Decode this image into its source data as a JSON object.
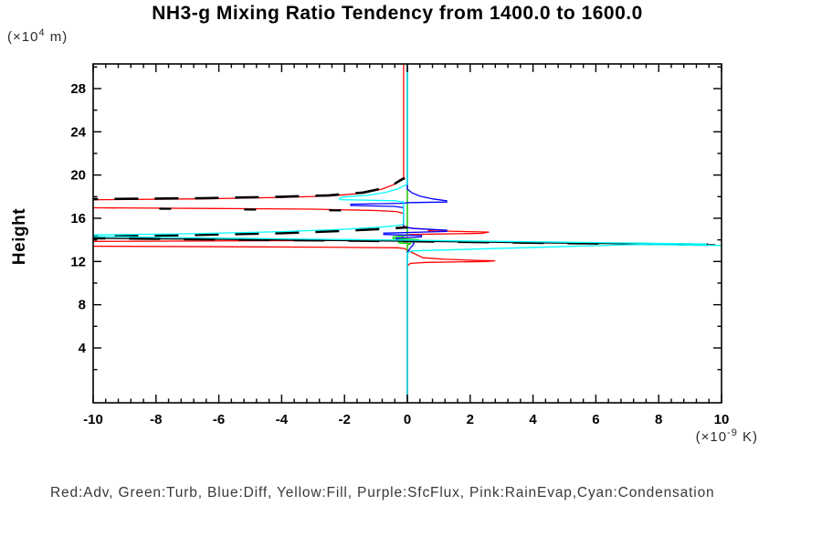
{
  "title": "NH3-g Mixing Ratio Tendency from 1400.0 to 1600.0",
  "legend_line": "Red:Adv, Green:Turb, Blue:Diff, Yellow:Fill, Purple:SfcFlux, Pink:RainEvap,Cyan:Condensation",
  "y_axis": {
    "label": "Height",
    "unit_prefix": "(×10",
    "unit_sup": "4",
    "unit_suffix": " m)",
    "range": [
      0,
      30
    ],
    "major_ticks": [
      4,
      8,
      12,
      16,
      20,
      24,
      28
    ],
    "minor_ticks": [
      2,
      6,
      10,
      14,
      18,
      22,
      26,
      30
    ]
  },
  "x_axis": {
    "unit_prefix": "(×10",
    "unit_sup": "-9",
    "unit_suffix": " K)",
    "range": [
      -10,
      10
    ],
    "major_ticks": [
      -10,
      -8,
      -6,
      -4,
      -2,
      0,
      2,
      4,
      6,
      8,
      10
    ],
    "minor_step": 0.4
  },
  "colors": {
    "adv": "#ff0000",
    "turb": "#00dd00",
    "diff": "#0000ff",
    "fill": "#ffff00",
    "sfcflux": "#aa00dd",
    "rainevap": "#ff8888",
    "condensation": "#00ffff",
    "net": "#000000",
    "frame": "#000000"
  },
  "chart_data": {
    "type": "line",
    "orientation": "vertical-profile",
    "title": "NH3-g Mixing Ratio Tendency from 1400.0 to 1600.0",
    "xlabel": "(x10^-9 K)",
    "ylabel": "Height (x10^4 m)",
    "xlim": [
      -10,
      10
    ],
    "ylim": [
      0,
      30
    ],
    "grid": false,
    "zero_line": {
      "x": 0,
      "color": "#00ffff"
    },
    "series": [
      {
        "name": "fill",
        "legend": "Yellow:Fill",
        "color": "#ffff00",
        "width": 1.2,
        "dash": null,
        "points": [
          [
            0,
            30.5
          ],
          [
            0,
            -1.5
          ]
        ]
      },
      {
        "name": "sfcflux",
        "legend": "Purple:SfcFlux",
        "color": "#aa00dd",
        "width": 1.2,
        "dash": null,
        "points": [
          [
            0,
            30.5
          ],
          [
            0,
            -1.5
          ]
        ]
      },
      {
        "name": "rainevap",
        "legend": "Pink:RainEvap",
        "color": "#ff8888",
        "width": 1.2,
        "dash": null,
        "points": [
          [
            0,
            30.5
          ],
          [
            0,
            -1.5
          ]
        ]
      },
      {
        "name": "adv",
        "legend": "Red:Adv",
        "color": "#ff0000",
        "width": 1.3,
        "dash": null,
        "points": [
          [
            -0.12,
            30.5
          ],
          [
            -0.12,
            19.75
          ],
          [
            -0.25,
            19.55
          ],
          [
            -0.4,
            19.15
          ],
          [
            -0.8,
            18.7
          ],
          [
            -1.4,
            18.32
          ],
          [
            -2.5,
            18.06
          ],
          [
            -4,
            17.93
          ],
          [
            -6.5,
            17.8
          ],
          [
            -10.6,
            17.7
          ],
          [
            -10.6,
            16.98
          ],
          [
            -6,
            16.9
          ],
          [
            -3,
            16.84
          ],
          [
            -1,
            16.72
          ],
          [
            -0.35,
            16.62
          ],
          [
            -0.12,
            16.45
          ],
          [
            -0.12,
            15.25
          ],
          [
            0.1,
            15.08
          ],
          [
            0.85,
            14.95
          ],
          [
            0.65,
            14.85
          ],
          [
            2.6,
            14.72
          ],
          [
            2.35,
            14.6
          ],
          [
            0.15,
            14.5
          ],
          [
            -0.15,
            14.42
          ],
          [
            -0.15,
            13.97
          ],
          [
            -10.6,
            13.85
          ],
          [
            -10.6,
            13.42
          ],
          [
            -2.8,
            13.33
          ],
          [
            -0.3,
            13.27
          ],
          [
            -0.1,
            13.2
          ],
          [
            0.1,
            12.9
          ],
          [
            0.5,
            12.35
          ],
          [
            1.2,
            12.2
          ],
          [
            2.2,
            12.1
          ],
          [
            2.8,
            12.07
          ],
          [
            2.5,
            12.0
          ],
          [
            0.6,
            11.92
          ],
          [
            0.1,
            11.82
          ],
          [
            0,
            11.6
          ],
          [
            0,
            -1.5
          ]
        ]
      },
      {
        "name": "turb",
        "legend": "Green:Turb",
        "color": "#00dd00",
        "width": 1.3,
        "dash": null,
        "points": [
          [
            0,
            30.5
          ],
          [
            0,
            14.42
          ],
          [
            -0.45,
            14.28
          ],
          [
            -0.45,
            14.12
          ],
          [
            0.35,
            14.02
          ],
          [
            0.33,
            13.9
          ],
          [
            -0.28,
            13.82
          ],
          [
            -0.26,
            13.72
          ],
          [
            0.1,
            13.64
          ],
          [
            0,
            13.5
          ],
          [
            0,
            -1.5
          ]
        ]
      },
      {
        "name": "diff",
        "legend": "Blue:Diff",
        "color": "#0000ff",
        "width": 1.3,
        "dash": null,
        "points": [
          [
            0,
            30.5
          ],
          [
            0,
            18.7
          ],
          [
            0.15,
            18.35
          ],
          [
            0.4,
            18.05
          ],
          [
            0.8,
            17.8
          ],
          [
            1.25,
            17.62
          ],
          [
            1.25,
            17.5
          ],
          [
            0.1,
            17.45
          ],
          [
            -0.2,
            17.38
          ],
          [
            -1.8,
            17.3
          ],
          [
            -1.8,
            17.18
          ],
          [
            -0.4,
            17.1
          ],
          [
            -0.12,
            16.98
          ],
          [
            -0.12,
            15.2
          ],
          [
            0.2,
            15.05
          ],
          [
            1.25,
            14.9
          ],
          [
            1.25,
            14.78
          ],
          [
            -0.75,
            14.62
          ],
          [
            -0.75,
            14.5
          ],
          [
            0.45,
            14.4
          ],
          [
            0.45,
            14.27
          ],
          [
            -0.35,
            14.17
          ],
          [
            -0.35,
            14.02
          ],
          [
            0.2,
            13.92
          ],
          [
            0.2,
            13.6
          ],
          [
            0.08,
            13.2
          ],
          [
            0,
            12.85
          ],
          [
            0,
            -1.5
          ]
        ]
      },
      {
        "name": "net-upper",
        "legend": "",
        "color": "#000000",
        "width": 2.6,
        "dash": "26 18",
        "points": [
          [
            -10.6,
            17.76
          ],
          [
            -6.5,
            17.86
          ],
          [
            -4,
            17.99
          ],
          [
            -2.5,
            18.12
          ],
          [
            -1.4,
            18.38
          ],
          [
            -0.8,
            18.76
          ],
          [
            -0.4,
            19.2
          ],
          [
            -0.2,
            19.55
          ],
          [
            -0.08,
            19.72
          ]
        ]
      },
      {
        "name": "net-adv2",
        "legend": "",
        "color": "#000000",
        "width": 2.2,
        "dash": "13 80",
        "points": [
          [
            -10.6,
            16.96
          ],
          [
            -0.4,
            16.68
          ]
        ]
      },
      {
        "name": "net-peak",
        "legend": "",
        "color": "#000000",
        "width": 2.6,
        "dash": "26 18",
        "points": [
          [
            -10.6,
            14.3
          ],
          [
            -7,
            14.44
          ],
          [
            -4,
            14.62
          ],
          [
            -2,
            14.84
          ],
          [
            -0.9,
            15.0
          ],
          [
            -0.3,
            15.1
          ],
          [
            0,
            15.16
          ]
        ]
      },
      {
        "name": "net-cross-solid",
        "legend": "",
        "color": "#000000",
        "width": 1.3,
        "dash": null,
        "points": [
          [
            -10.6,
            14.17
          ],
          [
            -4,
            13.99
          ],
          [
            0,
            13.88
          ],
          [
            5,
            13.7
          ],
          [
            9.8,
            13.55
          ]
        ]
      },
      {
        "name": "net-cross-dash",
        "legend": "",
        "color": "#000000",
        "width": 2.6,
        "dash": "34 26",
        "points": [
          [
            -10.6,
            14.17
          ],
          [
            -4,
            13.99
          ],
          [
            0,
            13.88
          ],
          [
            5,
            13.7
          ],
          [
            9.8,
            13.55
          ]
        ]
      },
      {
        "name": "condensation",
        "legend": "Cyan:Condensation",
        "color": "#00ffff",
        "width": 1.3,
        "dash": null,
        "points": [
          [
            0,
            30.5
          ],
          [
            0,
            19.15
          ],
          [
            -0.3,
            18.72
          ],
          [
            -0.7,
            18.38
          ],
          [
            -1.3,
            18.12
          ],
          [
            -2.05,
            17.97
          ],
          [
            -2.15,
            17.85
          ],
          [
            -2.15,
            17.72
          ],
          [
            -0.4,
            17.62
          ],
          [
            -0.12,
            17.5
          ],
          [
            -0.12,
            15.45
          ],
          [
            -0.35,
            15.32
          ],
          [
            -0.9,
            15.17
          ],
          [
            -2,
            14.98
          ],
          [
            -4,
            14.76
          ],
          [
            -7,
            14.56
          ],
          [
            -10.6,
            14.44
          ],
          [
            -10.6,
            14.33
          ],
          [
            -4,
            14.1
          ],
          [
            0,
            13.97
          ],
          [
            5,
            13.78
          ],
          [
            9.5,
            13.62
          ],
          [
            9.5,
            13.5
          ],
          [
            10.6,
            13.45
          ],
          [
            7.4,
            13.58
          ],
          [
            0.15,
            12.98
          ],
          [
            0,
            12.8
          ],
          [
            0,
            -1.5
          ]
        ]
      }
    ]
  }
}
